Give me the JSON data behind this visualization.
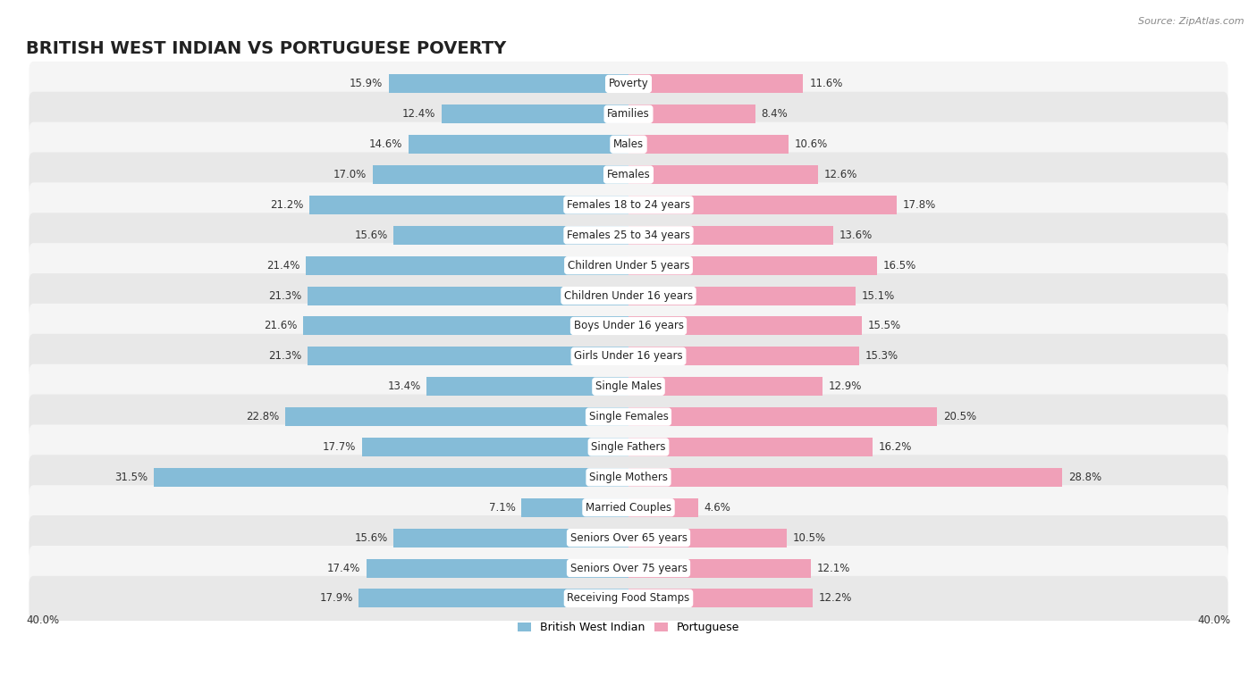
{
  "title": "BRITISH WEST INDIAN VS PORTUGUESE POVERTY",
  "source": "Source: ZipAtlas.com",
  "categories": [
    "Poverty",
    "Families",
    "Males",
    "Females",
    "Females 18 to 24 years",
    "Females 25 to 34 years",
    "Children Under 5 years",
    "Children Under 16 years",
    "Boys Under 16 years",
    "Girls Under 16 years",
    "Single Males",
    "Single Females",
    "Single Fathers",
    "Single Mothers",
    "Married Couples",
    "Seniors Over 65 years",
    "Seniors Over 75 years",
    "Receiving Food Stamps"
  ],
  "british_values": [
    15.9,
    12.4,
    14.6,
    17.0,
    21.2,
    15.6,
    21.4,
    21.3,
    21.6,
    21.3,
    13.4,
    22.8,
    17.7,
    31.5,
    7.1,
    15.6,
    17.4,
    17.9
  ],
  "portuguese_values": [
    11.6,
    8.4,
    10.6,
    12.6,
    17.8,
    13.6,
    16.5,
    15.1,
    15.5,
    15.3,
    12.9,
    20.5,
    16.2,
    28.8,
    4.6,
    10.5,
    12.1,
    12.2
  ],
  "british_color": "#85bcd8",
  "portuguese_color": "#f0a0b8",
  "row_bg_odd": "#f5f5f5",
  "row_bg_even": "#e8e8e8",
  "max_val": 40.0,
  "legend_british": "British West Indian",
  "legend_portuguese": "Portuguese",
  "title_fontsize": 14,
  "label_fontsize": 8.5,
  "value_fontsize": 8.5
}
